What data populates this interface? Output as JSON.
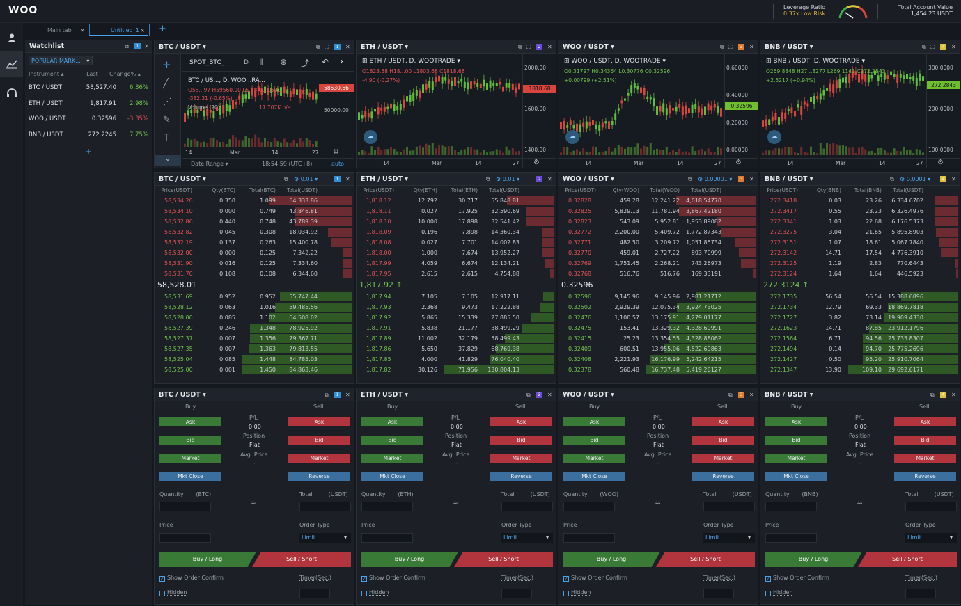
{
  "app": {
    "logo": "WOO"
  },
  "header": {
    "leverage_label": "Leverage Ratio",
    "leverage_value": "0.37x  Low Risk",
    "account_label": "Total Account Value",
    "account_value": "1,454.23 USDT"
  },
  "tabs": [
    {
      "label": "Main tab",
      "active": false
    },
    {
      "label": "Untitled_1",
      "active": true
    }
  ],
  "watchlist": {
    "title": "Watchlist",
    "filter": "POPULAR MARK...",
    "col_instrument": "Instrument",
    "col_last": "Last",
    "col_change": "Change%",
    "rows": [
      {
        "symbol": "BTC / USDT",
        "last": "58,527.40",
        "change": "6.36%",
        "dir": "up"
      },
      {
        "symbol": "ETH / USDT",
        "last": "1,817.91",
        "change": "2.98%",
        "dir": "up"
      },
      {
        "symbol": "WOO / USDT",
        "last": "0.32596",
        "change": "-3.35%",
        "dir": "dn"
      },
      {
        "symbol": "BNB / USDT",
        "last": "272.2245",
        "change": "7.75%",
        "dir": "up"
      }
    ],
    "add": "+"
  },
  "colors": {
    "accent": "#4aa3e8",
    "up": "#6fc24b",
    "down": "#e05252",
    "badges": [
      "#2f8fd6",
      "#6a4bd6",
      "#e07b2f",
      "#e0c23a"
    ]
  },
  "markets": [
    {
      "pair": "BTC / USDT",
      "badge": "1",
      "base": "BTC",
      "chart": {
        "symbol_box": "SPOT_BTC_",
        "interval": "D",
        "legend": "BTC / US..., D, WOO...RA...",
        "ohlc": "O58...97 H59560.00 L5...8.00 C58...",
        "change": "-382.31 (-0.65%)",
        "volume": "Volume (20)",
        "volume_value": "17.707K n/a",
        "price_tag": "58530.66",
        "y_ticks": [
          "50000.00"
        ],
        "x_ticks": [
          "14",
          "Mar",
          "14",
          "27"
        ],
        "date_range": "Date Range",
        "time": "18:54:59 (UTC+8)",
        "auto": "auto"
      },
      "ob": {
        "step": "0.01",
        "cols": [
          "Price(USDT)",
          "Qty(BTC)",
          "Total(BTC)",
          "Total(USDT)"
        ],
        "asks": [
          [
            "58,534.20",
            "0.350",
            "1.099",
            "64,333.86",
            0.75
          ],
          [
            "58,534.10",
            "0.000",
            "0.749",
            "43,846.81",
            0.52
          ],
          [
            "58,532.86",
            "0.440",
            "0.748",
            "43,789.39",
            0.52
          ],
          [
            "58,532.82",
            "0.045",
            "0.308",
            "18,034.92",
            0.22
          ],
          [
            "58,532.19",
            "0.137",
            "0.263",
            "15,400.78",
            0.19
          ],
          [
            "58,532.00",
            "0.000",
            "0.125",
            "7,342.22",
            0.09
          ],
          [
            "58,531.90",
            "0.016",
            "0.125",
            "7,334.60",
            0.09
          ],
          [
            "58,531.70",
            "0.108",
            "0.108",
            "6,344.60",
            0.08
          ]
        ],
        "last": "58,528.01",
        "bids": [
          [
            "58,531.69",
            "0.952",
            "0.952",
            "55,747.44",
            0.66
          ],
          [
            "58,528.12",
            "0.063",
            "1.016",
            "59,485.56",
            0.7
          ],
          [
            "58,528.00",
            "0.085",
            "1.102",
            "64,508.02",
            0.76
          ],
          [
            "58,527.39",
            "0.246",
            "1.348",
            "78,925.92",
            0.93
          ],
          [
            "58,527.37",
            "0.007",
            "1.356",
            "79,367.71",
            0.93
          ],
          [
            "58,527.35",
            "0.007",
            "1.363",
            "79,813.55",
            0.94
          ],
          [
            "58,525.04",
            "0.085",
            "1.448",
            "84,785.03",
            1.0
          ],
          [
            "58,525.00",
            "0.001",
            "1.450",
            "84,863.46",
            1.0
          ]
        ]
      }
    },
    {
      "pair": "ETH / USDT",
      "badge": "2",
      "base": "ETH",
      "chart": {
        "legend": "ETH / USDT, D, WOOTRADE",
        "ohlc": "O1823.58 H18...00 L1803.68 C1818.68",
        "change": "-4.90 (-0.27%)",
        "price_tag": "1818.68",
        "y_ticks": [
          "2000.00",
          "1600.00",
          "1400.00"
        ],
        "x_ticks": [
          "14",
          "Mar",
          "14",
          "27"
        ]
      },
      "ob": {
        "step": "0.01",
        "cols": [
          "Price(USDT)",
          "Qty(ETH)",
          "Total(ETH)",
          "Total(USDT)"
        ],
        "asks": [
          [
            "1,818.12",
            "12.792",
            "30.717",
            "55,848.81",
            0.43
          ],
          [
            "1,818.11",
            "0.027",
            "17.925",
            "32,590.69",
            0.25
          ],
          [
            "1,818.10",
            "10.000",
            "17.898",
            "32,541.42",
            0.25
          ],
          [
            "1,818.09",
            "0.196",
            "7.898",
            "14,360.34",
            0.11
          ],
          [
            "1,818.08",
            "0.027",
            "7.701",
            "14,002.83",
            0.11
          ],
          [
            "1,818.00",
            "1.000",
            "7.674",
            "13,952.27",
            0.11
          ],
          [
            "1,817.99",
            "4.059",
            "6.674",
            "12,134.21",
            0.09
          ],
          [
            "1,817.95",
            "2.615",
            "2.615",
            "4,754.88",
            0.04
          ]
        ],
        "last": "1,817.92",
        "bids": [
          [
            "1,817.94",
            "7.105",
            "7.105",
            "12,917.11",
            0.1
          ],
          [
            "1,817.93",
            "2.368",
            "9.473",
            "17,222.88",
            0.13
          ],
          [
            "1,817.92",
            "5.865",
            "15.339",
            "27,885.50",
            0.21
          ],
          [
            "1,817.91",
            "5.838",
            "21.177",
            "38,499.29",
            0.3
          ],
          [
            "1,817.89",
            "11.002",
            "32.179",
            "58,499.43",
            0.45
          ],
          [
            "1,817.86",
            "5.650",
            "37.829",
            "68,769.38",
            0.53
          ],
          [
            "1,817.85",
            "4.000",
            "41.829",
            "76,040.40",
            0.58
          ],
          [
            "1,817.82",
            "30.126",
            "71.956",
            "130,804.13",
            1.0
          ]
        ]
      }
    },
    {
      "pair": "WOO / USDT",
      "badge": "3",
      "base": "WOO",
      "chart": {
        "legend": "WOO / USDT, D, WOOTRADE",
        "ohlc": "O0.31797 H0.34364 L0.30776 C0.32596",
        "change": "+0.00799 (+2.51%)",
        "price_tag": "0.32596",
        "y_ticks": [
          "0.60000",
          "0.40000",
          "0.20000",
          "0.00000"
        ],
        "x_ticks": [
          "14",
          "Mar",
          "14",
          "27"
        ]
      },
      "ob": {
        "step": "0.00001",
        "cols": [
          "Price(USDT)",
          "Qty(WOO)",
          "Total(WOO)",
          "Total(USDT)"
        ],
        "asks": [
          [
            "0.32828",
            "459.28",
            "12,241.22",
            "4,018.54770",
            0.73
          ],
          [
            "0.32825",
            "5,829.13",
            "11,781.94",
            "3,867.42180",
            0.7
          ],
          [
            "0.32823",
            "543.09",
            "5,952.81",
            "1,953.89082",
            0.36
          ],
          [
            "0.32772",
            "2,200.00",
            "5,409.72",
            "1,772.87343",
            0.32
          ],
          [
            "0.32771",
            "482.50",
            "3,209.72",
            "1,051.85734",
            0.19
          ],
          [
            "0.32770",
            "459.01",
            "2,727.22",
            "893.70999",
            0.16
          ],
          [
            "0.32769",
            "1,751.45",
            "2,268.21",
            "743.26973",
            0.14
          ],
          [
            "0.32768",
            "516.76",
            "516.76",
            "169.33191",
            0.03
          ]
        ],
        "last": "0.32596",
        "bids": [
          [
            "0.32596",
            "9,145.96",
            "9,145.96",
            "2,981.21712",
            0.55
          ],
          [
            "0.32502",
            "2,929.39",
            "12,075.34",
            "3,924.73025",
            0.72
          ],
          [
            "0.32476",
            "1,100.57",
            "13,175.91",
            "4,279.01177",
            0.79
          ],
          [
            "0.32475",
            "153.41",
            "13,329.32",
            "4,328.69991",
            0.8
          ],
          [
            "0.32415",
            "25.23",
            "13,354.55",
            "4,328.88062",
            0.8
          ],
          [
            "0.32409",
            "600.51",
            "13,955.06",
            "4,522.69863",
            0.84
          ],
          [
            "0.32408",
            "2,221.93",
            "16,176.99",
            "5,242.64215",
            0.97
          ],
          [
            "0.32378",
            "560.48",
            "16,737.48",
            "5,419.26127",
            1.0
          ]
        ]
      }
    },
    {
      "pair": "BNB / USDT",
      "badge": "4",
      "base": "BNB",
      "chart": {
        "legend": "BNB / USDT, D, WOOTRADE",
        "ohlc": "O269.8848 H27...8277 L269.1143 C272.2843",
        "change": "+2.5217 (+0.94%)",
        "price_tag": "272.2843",
        "y_ticks": [
          "300.0000",
          "200.0000",
          "100.0000"
        ],
        "x_ticks": [
          "14",
          "Mar",
          "14",
          "27"
        ]
      },
      "ob": {
        "step": "0.0001",
        "cols": [
          "Price(USDT)",
          "Qty(BNB)",
          "Total(BNB)",
          "Total(USDT)"
        ],
        "asks": [
          [
            "272.3418",
            "0.03",
            "23.26",
            "6,334.6702",
            0.21
          ],
          [
            "272.3417",
            "0.55",
            "23.23",
            "6,326.4976",
            0.21
          ],
          [
            "272.3341",
            "1.03",
            "22.68",
            "6,176.5373",
            0.21
          ],
          [
            "272.3275",
            "3.04",
            "21.65",
            "5,895.8903",
            0.2
          ],
          [
            "272.3151",
            "1.07",
            "18.61",
            "5,067.7840",
            0.17
          ],
          [
            "272.3142",
            "14.71",
            "17.54",
            "4,776.3910",
            0.16
          ],
          [
            "272.3125",
            "1.19",
            "2.83",
            "770.6443",
            0.03
          ],
          [
            "272.3124",
            "1.64",
            "1.64",
            "446.5923",
            0.02
          ]
        ],
        "last": "272.3124",
        "bids": [
          [
            "272.1735",
            "56.54",
            "56.54",
            "15,388.6896",
            0.52
          ],
          [
            "272.1734",
            "12.79",
            "69.33",
            "18,869.7818",
            0.64
          ],
          [
            "272.1727",
            "3.82",
            "73.14",
            "19,909.4330",
            0.67
          ],
          [
            "272.1623",
            "14.71",
            "87.85",
            "23,912.1796",
            0.81
          ],
          [
            "272.1564",
            "6.71",
            "94.56",
            "25,735.8307",
            0.87
          ],
          [
            "272.1494",
            "0.14",
            "94.70",
            "25,775.2696",
            0.87
          ],
          [
            "272.1427",
            "0.50",
            "95.20",
            "25,910.7064",
            0.87
          ],
          [
            "272.1347",
            "13.90",
            "109.10",
            "29,692.6171",
            1.0
          ]
        ]
      }
    }
  ],
  "trade": {
    "buy": "Buy",
    "sell": "Sell",
    "ask": "Ask",
    "bid": "Bid",
    "market": "Market",
    "mkt_close": "Mkt Close",
    "reverse": "Reverse",
    "pl_label": "P/L",
    "pl_value": "0.00",
    "position_label": "Position",
    "position_value": "Flat",
    "avg_label": "Avg. Price",
    "avg_value": "-",
    "quantity": "Quantity",
    "total": "Total",
    "quote": "(USDT)",
    "approx": "≈",
    "price": "Price",
    "order_type": "Order Type",
    "order_type_value": "Limit",
    "buy_long": "Buy / Long",
    "sell_short": "Sell / Short",
    "show_confirm": "Show Order Confirm",
    "timer": "Timer(Sec.)",
    "hidden": "Hidden"
  }
}
